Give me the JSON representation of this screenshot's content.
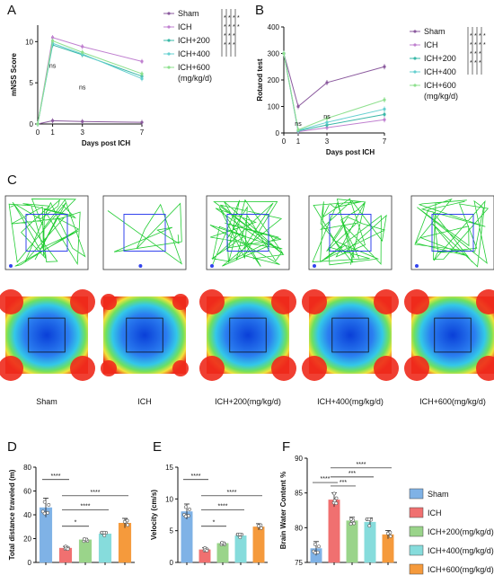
{
  "colors": {
    "Sham": "#8b5a9e",
    "ICH": "#c080d0",
    "ICH+200": "#3bb8a8",
    "ICH+400": "#66d0d0",
    "ICH+600": "#8ee08e",
    "track": "#22cc33",
    "zone": "#3344ee",
    "bar_sham": "#7fb2e6",
    "bar_ich": "#f07070",
    "bar_200": "#9ad48a",
    "bar_400": "#86dcdc",
    "bar_600": "#f59a3c"
  },
  "panels": {
    "A": "A",
    "B": "B",
    "C": "C",
    "D": "D",
    "E": "E",
    "F": "F"
  },
  "chart_data": [
    {
      "panel": "A",
      "type": "line",
      "title": "",
      "xlabel": "Days post ICH",
      "ylabel": "mNSS Score",
      "x": [
        0,
        1,
        3,
        7
      ],
      "xticks": [
        "0",
        "1",
        "3",
        "7"
      ],
      "ylim": [
        0,
        12
      ],
      "yticks": [
        "0",
        "5",
        "10"
      ],
      "series": [
        {
          "name": "Sham",
          "values": [
            0,
            0.4,
            0.3,
            0.2
          ]
        },
        {
          "name": "ICH",
          "values": [
            0,
            10.5,
            9.4,
            7.6
          ]
        },
        {
          "name": "ICH+200",
          "values": [
            0,
            9.6,
            8.4,
            5.8
          ]
        },
        {
          "name": "ICH+400",
          "values": [
            0,
            9.8,
            8.5,
            5.5
          ]
        },
        {
          "name": "ICH+600",
          "values": [
            0,
            10.1,
            8.7,
            6.1
          ]
        }
      ],
      "annotations": [
        "ns",
        "ns"
      ],
      "legend": [
        "Sham",
        "ICH",
        "ICH+200",
        "ICH+400",
        "ICH+600",
        "(mg/kg/d)"
      ]
    },
    {
      "panel": "B",
      "type": "line",
      "title": "",
      "xlabel": "Days post ICH",
      "ylabel": "Rotarod test",
      "x": [
        0,
        1,
        3,
        7
      ],
      "xticks": [
        "0",
        "1",
        "3",
        "7"
      ],
      "ylim": [
        0,
        400
      ],
      "yticks": [
        "0",
        "100",
        "200",
        "300",
        "400"
      ],
      "series": [
        {
          "name": "Sham",
          "values": [
            300,
            100,
            190,
            250
          ]
        },
        {
          "name": "ICH",
          "values": [
            300,
            5,
            20,
            50
          ]
        },
        {
          "name": "ICH+200",
          "values": [
            300,
            8,
            30,
            70
          ]
        },
        {
          "name": "ICH+400",
          "values": [
            300,
            10,
            40,
            90
          ]
        },
        {
          "name": "ICH+600",
          "values": [
            300,
            12,
            55,
            125
          ]
        }
      ],
      "annotations": [
        "ns",
        "ns"
      ],
      "legend": [
        "Sham",
        "ICH",
        "ICH+200",
        "ICH+400",
        "ICH+600",
        "(mg/kg/d)"
      ]
    },
    {
      "panel": "D",
      "type": "bar",
      "title": "",
      "xlabel": "",
      "ylabel": "Total distance traveled (m)",
      "categories": [
        "Sham",
        "ICH",
        "ICH+200(mg/kg/d)",
        "ICH+400(mg/kg/d)",
        "ICH+600(mg/kg/d)"
      ],
      "values": [
        46,
        12,
        19,
        24,
        33
      ],
      "errors": [
        8,
        1.5,
        1.2,
        1.5,
        4
      ],
      "ylim": [
        0,
        80
      ],
      "yticks": [
        "0",
        "20",
        "40",
        "60",
        "80"
      ],
      "significance": [
        "****",
        "*",
        "****",
        "****"
      ]
    },
    {
      "panel": "E",
      "type": "bar",
      "title": "",
      "xlabel": "",
      "ylabel": "Velocity (cm/s)",
      "categories": [
        "Sham",
        "ICH",
        "ICH+200(mg/kg/d)",
        "ICH+400(mg/kg/d)",
        "ICH+600(mg/kg/d)"
      ],
      "values": [
        8,
        2,
        3,
        4.2,
        5.6
      ],
      "errors": [
        1.2,
        0.3,
        0.2,
        0.3,
        0.5
      ],
      "ylim": [
        0,
        15
      ],
      "yticks": [
        "0",
        "5",
        "10",
        "15"
      ],
      "significance": [
        "****",
        "*",
        "****",
        "****"
      ]
    },
    {
      "panel": "F",
      "type": "bar",
      "title": "",
      "xlabel": "",
      "ylabel": "Brain Water Content %",
      "categories": [
        "Sham",
        "ICH",
        "ICH+200(mg/kg/d)",
        "ICH+400(mg/kg/d)",
        "ICH+600(mg/kg/d)"
      ],
      "values": [
        77,
        84,
        81,
        80.8,
        79
      ],
      "errors": [
        1,
        1,
        0.5,
        0.6,
        0.6
      ],
      "ylim": [
        75,
        90
      ],
      "yticks": [
        "75",
        "80",
        "85",
        "90"
      ],
      "significance": [
        "****",
        "***",
        "***",
        "****"
      ],
      "legend": [
        "Sham",
        "ICH",
        "ICH+200(mg/kg/d)",
        "ICH+400(mg/kg/d)",
        "ICH+600(mg/kg/d)"
      ]
    }
  ],
  "open_field": {
    "labels": [
      "Sham",
      "ICH",
      "ICH+200(mg/kg/d)",
      "ICH+400(mg/kg/d)",
      "ICH+600(mg/kg/d)"
    ],
    "track_style": "green trajectory with blue center zone",
    "heatmap_style": "red edges, blue center"
  }
}
